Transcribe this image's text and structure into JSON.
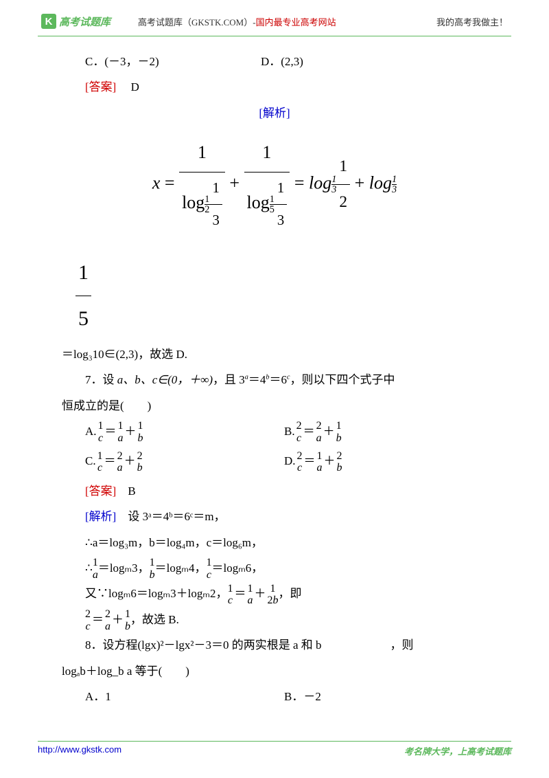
{
  "header": {
    "logo_letter": "K",
    "logo_text": "高考试题库",
    "center_black": "高考试题库（GKSTK.COM）-",
    "center_red": "国内最专业高考网站",
    "right": "我的高考我做主！"
  },
  "options_cd": {
    "c": "C．(－3，－2)",
    "d": "D．(2,3)"
  },
  "answer6": {
    "label": "[答案]",
    "value": "D"
  },
  "analysis_label": "[解析]",
  "frac15": {
    "num": "1",
    "den": "5"
  },
  "line_log310": "＝log₃10∈(2,3)，故选 D.",
  "q7": {
    "stem_a": "7．设 ",
    "math": "a、b、c∈(0，＋∞)",
    "stem_b": "，且 3",
    "stem_c": "＝4",
    "stem_d": "＝6",
    "stem_e": "，则以下四个式子中",
    "line2": "恒成立的是(　　)"
  },
  "q7_choices": {
    "A": {
      "label": "A.",
      "n1": "1",
      "d1": "c",
      "n2": "1",
      "d2": "a",
      "n3": "1",
      "d3": "b"
    },
    "B": {
      "label": "B.",
      "n1": "2",
      "d1": "c",
      "n2": "2",
      "d2": "a",
      "n3": "1",
      "d3": "b"
    },
    "C": {
      "label": "C.",
      "n1": "1",
      "d1": "c",
      "n2": "2",
      "d2": "a",
      "n3": "2",
      "d3": "b"
    },
    "D": {
      "label": "D.",
      "n1": "2",
      "d1": "c",
      "n2": "1",
      "d2": "a",
      "n3": "2",
      "d3": "b"
    }
  },
  "answer7": {
    "label": "[答案]",
    "value": "B"
  },
  "analysis7": {
    "label": "[解析]",
    "text": "设 3ᵃ＝4ᵇ＝6ᶜ＝m，"
  },
  "line_abc": "∴a＝log₃m，b＝log₄m，c＝log₆m，",
  "line_recip": {
    "prefix": "∴",
    "f1n": "1",
    "f1d": "a",
    "e1": "＝logₘ3，",
    "f2n": "1",
    "f2d": "b",
    "e2": "＝logₘ4，",
    "f3n": "1",
    "f3d": "c",
    "e3": "＝logₘ6，"
  },
  "line_logm6": {
    "prefix": "又∵logₘ6＝logₘ3＋logₘ2，",
    "f1n": "1",
    "f1d": "c",
    "f2n": "1",
    "f2d": "a",
    "f3n": "1",
    "f3d": "2b",
    "suffix": "，即"
  },
  "line_final7": {
    "f1n": "2",
    "f1d": "c",
    "f2n": "2",
    "f2d": "a",
    "f3n": "1",
    "f3d": "b",
    "suffix": "，故选 B."
  },
  "q8": {
    "line1": "8．设方程(lgx)²－lgx²－3＝0 的两实根是 a 和 b",
    "line1_end": "，则",
    "line2": "logₐb＋log_b a 等于(　　)"
  },
  "q8_choices": {
    "A": "A．1",
    "B": "B．－2"
  },
  "footer": {
    "url": "http://www.gkstk.com",
    "slogan": "考名牌大学，上高考试题库"
  },
  "colors": {
    "green": "#5cb85c",
    "red": "#d00000",
    "blue": "#0000cc"
  }
}
